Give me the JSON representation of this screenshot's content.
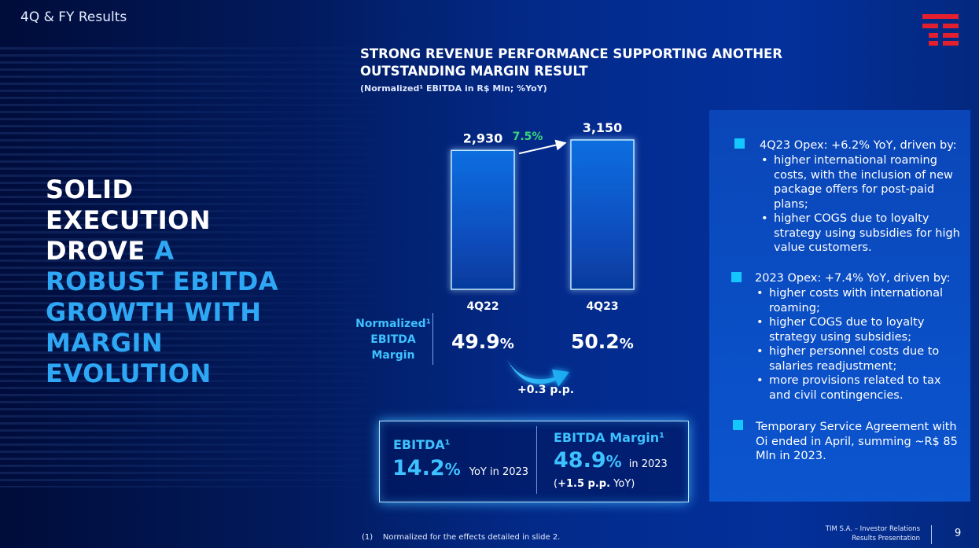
{
  "header": {
    "section_label": "4Q & FY Results"
  },
  "headline": {
    "line1": "SOLID",
    "line2": "EXECUTION",
    "line3a": "DROVE ",
    "line3b": "A",
    "line4": "ROBUST EBITDA",
    "line5": "GROWTH WITH",
    "line6": "MARGIN",
    "line7": "EVOLUTION"
  },
  "chart_data": {
    "type": "bar",
    "title": "STRONG REVENUE PERFORMANCE SUPPORTING ANOTHER OUTSTANDING MARGIN RESULT",
    "title_line1": "STRONG REVENUE PERFORMANCE SUPPORTING ANOTHER",
    "title_line2": "OUTSTANDING MARGIN RESULT",
    "subtitle": "(Normalized¹ EBITDA in R$ Mln; %YoY)",
    "categories": [
      "4Q22",
      "4Q23"
    ],
    "values": [
      2930,
      3150
    ],
    "value_labels": [
      "2,930",
      "3,150"
    ],
    "ylim": [
      0,
      3150
    ],
    "growth_label": "7.5%",
    "margin_label_lines": [
      "Normalized¹",
      "EBITDA",
      "Margin"
    ],
    "margins": [
      {
        "value": "49.9",
        "unit": "%"
      },
      {
        "value": "50.2",
        "unit": "%"
      }
    ],
    "margin_change": "+0.3 p.p."
  },
  "kpis": {
    "ebitda": {
      "title": "EBITDA¹",
      "value": "14.2",
      "unit": "%",
      "suffix": "YoY in 2023"
    },
    "ebitda_margin": {
      "title": "EBITDA Margin¹",
      "value": "48.9",
      "unit": "%",
      "suffix": "in 2023",
      "change_prefix": "(",
      "change_value": "+1.5 p.p.",
      "change_suffix": " YoY)"
    }
  },
  "panel": {
    "opex_4q23": {
      "title": "4Q23 Opex: +6.2% YoY, driven by:",
      "items": [
        "higher international roaming costs, with the inclusion of new package offers for post-paid plans;",
        "higher COGS due to loyalty strategy using subsidies for high value customers."
      ]
    },
    "opex_2023": {
      "title": "2023 Opex: +7.4% YoY, driven by:",
      "items": [
        "higher costs with international roaming;",
        "higher COGS due to loyalty strategy using subsidies;",
        "higher personnel costs due to salaries readjustment;",
        "more provisions related to tax and civil contingencies."
      ]
    },
    "tsa": {
      "text": "Temporary Service Agreement with Oi ended in April, summing ~R$ 85 Mln in 2023."
    }
  },
  "footer": {
    "footnote": "(1)    Normalized for the effects detailed in slide 2.",
    "line1": "TIM S.A. – Investor Relations",
    "line2": "Results Presentation",
    "page_number": "9"
  },
  "colors": {
    "accent_cyan": "#2ea8f5",
    "growth_green": "#39d67a",
    "logo_red": "#e4202e",
    "panel_blue": "#0b55cf"
  }
}
